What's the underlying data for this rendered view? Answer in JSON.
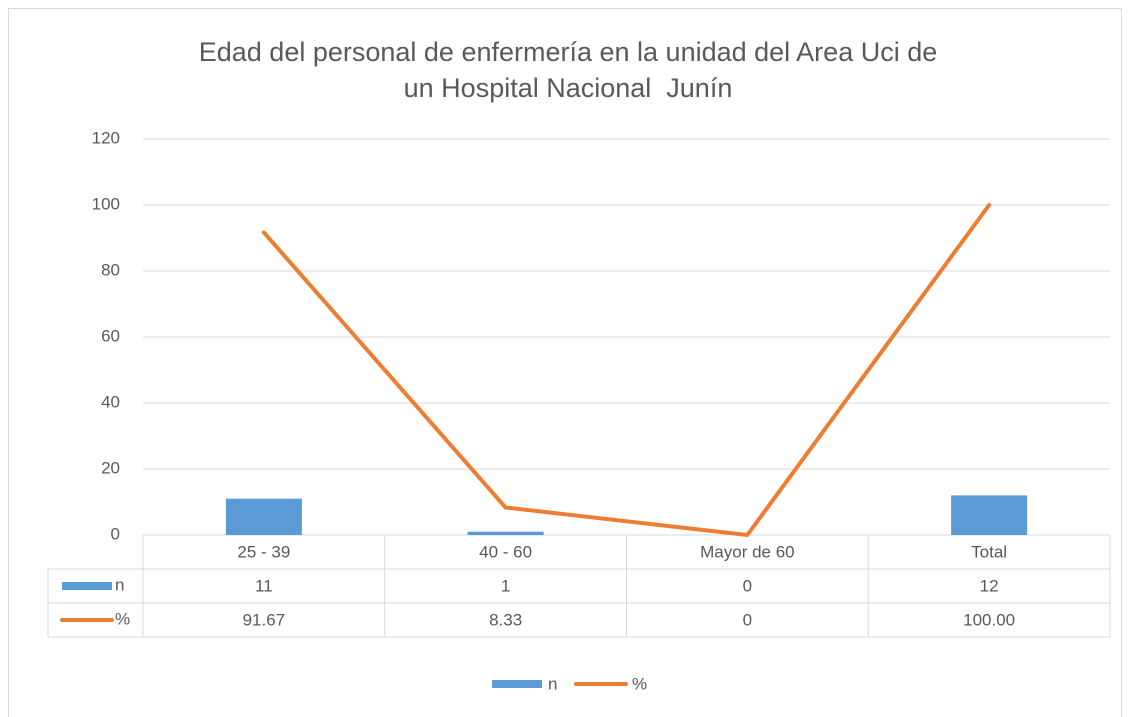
{
  "chart_data": {
    "type": "bar-line",
    "title": [
      "Edad del personal de enfermería en la unidad del Area Uci de",
      "un Hospital Nacional  Junín"
    ],
    "categories": [
      "25 - 39",
      "40 - 60",
      "Mayor de 60",
      "Total"
    ],
    "series": [
      {
        "name": "n",
        "type": "bar",
        "color": "#5b9bd5",
        "values": [
          11,
          1,
          0,
          12
        ]
      },
      {
        "name": "%",
        "type": "line",
        "color": "#ed7d31",
        "values": [
          91.67,
          8.33,
          0,
          100
        ],
        "value_labels": [
          "91.67",
          "8.33",
          "0",
          "100.00"
        ]
      }
    ],
    "ylim": [
      0,
      120
    ],
    "yticks": [
      0,
      20,
      40,
      60,
      80,
      100,
      120
    ],
    "grid": true,
    "legend": "bottom",
    "data_table": true
  }
}
